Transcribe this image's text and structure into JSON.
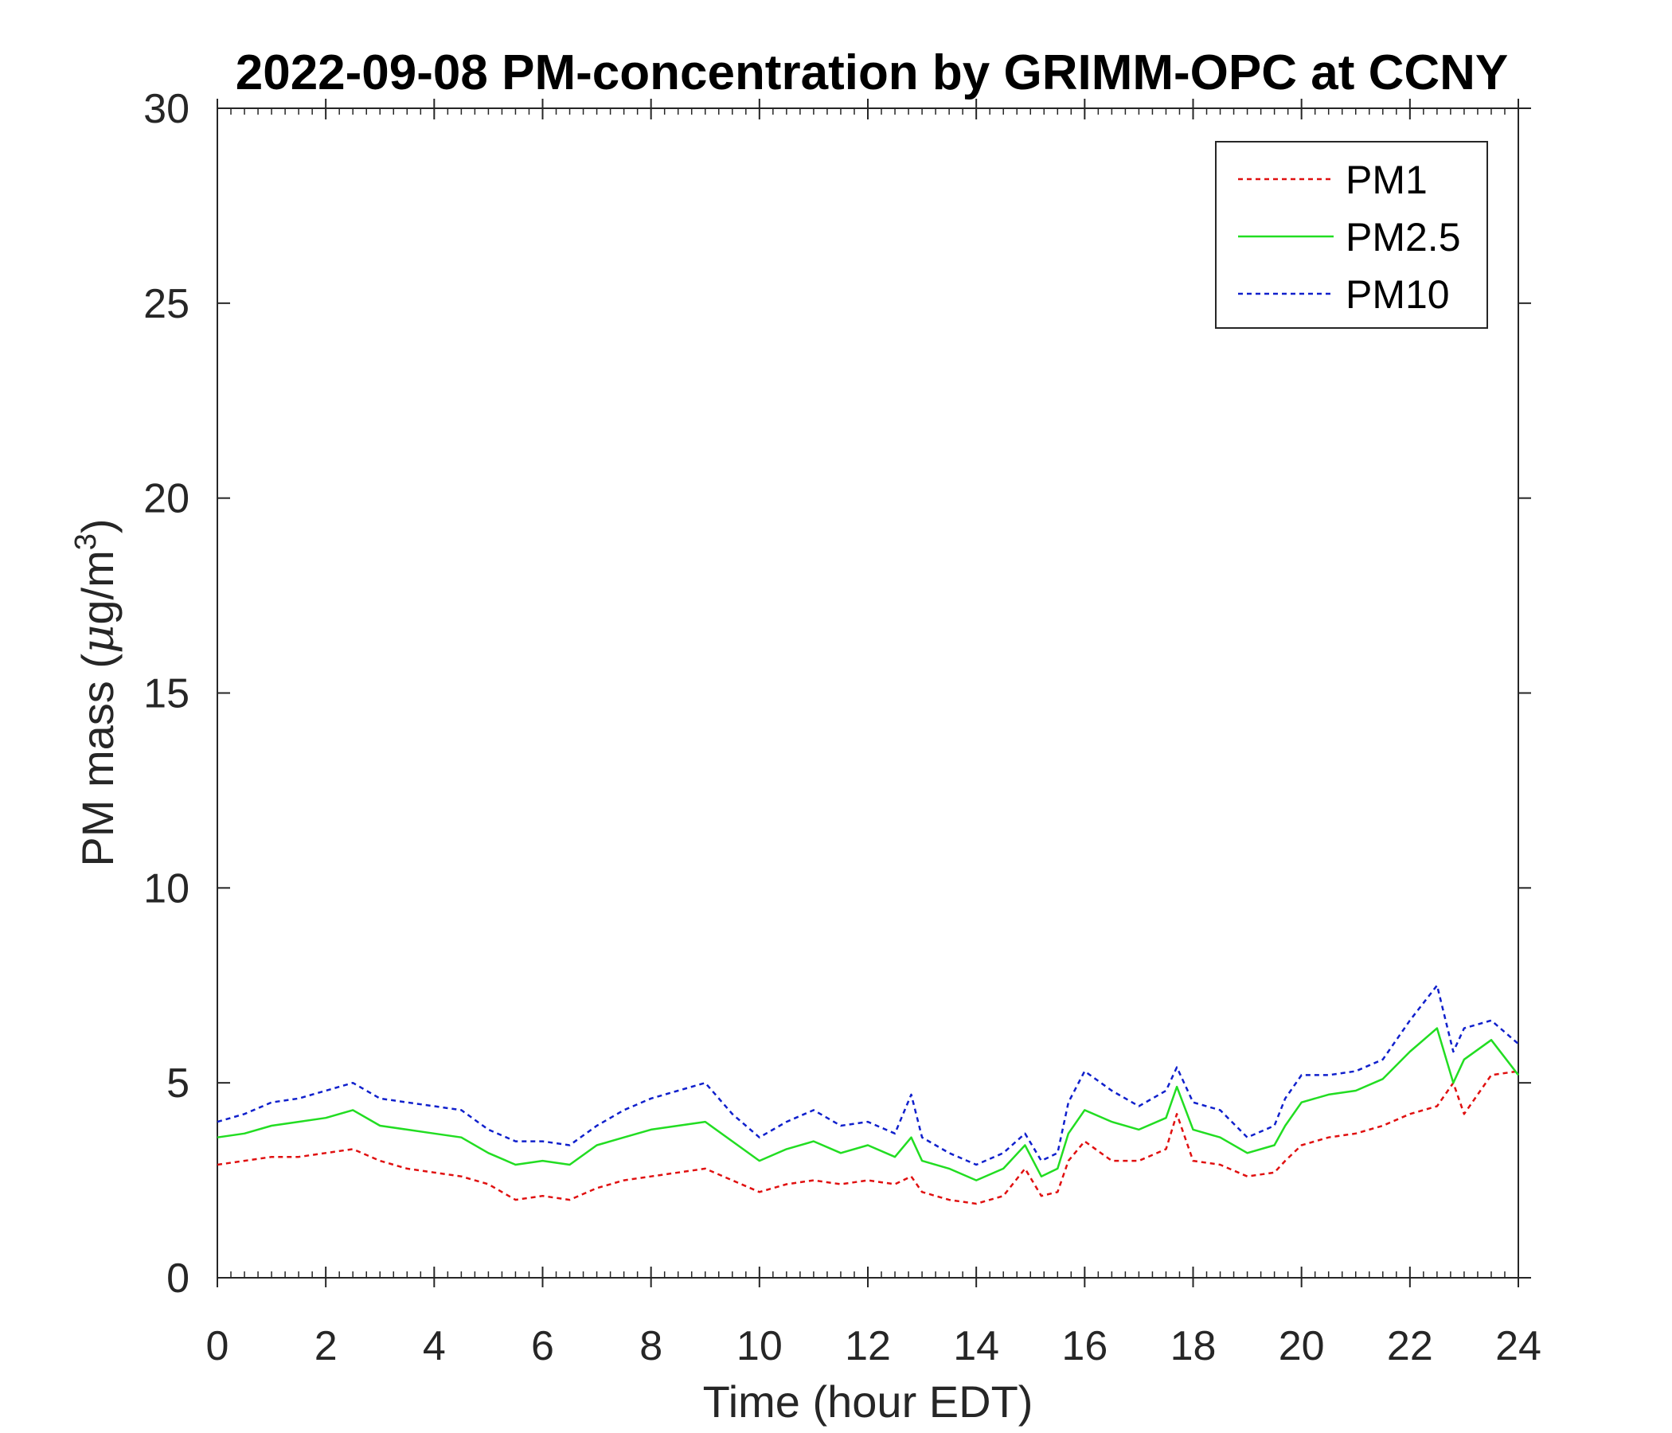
{
  "chart_data": {
    "type": "line",
    "title": "2022-09-08 PM-concentration by GRIMM-OPC at CCNY",
    "xlabel": "Time (hour EDT)",
    "ylabel_prefix": "PM mass (",
    "ylabel_unit_mu": "μ",
    "ylabel_unit_rest": "g/m",
    "ylabel_sup": "3",
    "ylabel_suffix": ")",
    "xlim": [
      0,
      24
    ],
    "ylim": [
      0,
      30
    ],
    "xticks": [
      0,
      2,
      4,
      6,
      8,
      10,
      12,
      14,
      16,
      18,
      20,
      22,
      24
    ],
    "xtick_labels": [
      "0",
      "2",
      "4",
      "6",
      "8",
      "10",
      "12",
      "14",
      "16",
      "18",
      "20",
      "22",
      "24"
    ],
    "yticks": [
      0,
      5,
      10,
      15,
      20,
      25,
      30
    ],
    "ytick_labels": [
      "0",
      "5",
      "10",
      "15",
      "20",
      "25",
      "30"
    ],
    "grid": false,
    "legend_position": "top-right",
    "x": [
      0,
      0.5,
      1,
      1.5,
      2,
      2.5,
      3,
      3.5,
      4,
      4.5,
      5,
      5.5,
      6,
      6.5,
      7,
      7.5,
      8,
      8.5,
      9,
      9.5,
      10,
      10.5,
      11,
      11.5,
      12,
      12.5,
      12.8,
      13,
      13.5,
      14,
      14.5,
      14.9,
      15.2,
      15.5,
      15.7,
      16,
      16.5,
      17,
      17.5,
      17.7,
      18,
      18.5,
      19,
      19.5,
      19.7,
      20,
      20.5,
      21,
      21.5,
      22,
      22.5,
      22.8,
      23,
      23.5,
      24
    ],
    "series": [
      {
        "name": "PM1",
        "color": "#e01010",
        "style": "dashed",
        "values": [
          2.9,
          3.0,
          3.1,
          3.1,
          3.2,
          3.3,
          3.0,
          2.8,
          2.7,
          2.6,
          2.4,
          2.0,
          2.1,
          2.0,
          2.3,
          2.5,
          2.6,
          2.7,
          2.8,
          2.5,
          2.2,
          2.4,
          2.5,
          2.4,
          2.5,
          2.4,
          2.6,
          2.2,
          2.0,
          1.9,
          2.1,
          2.8,
          2.1,
          2.2,
          3.0,
          3.5,
          3.0,
          3.0,
          3.3,
          4.2,
          3.0,
          2.9,
          2.6,
          2.7,
          3.0,
          3.4,
          3.6,
          3.7,
          3.9,
          4.2,
          4.4,
          5.0,
          4.2,
          5.2,
          5.3
        ]
      },
      {
        "name": "PM2.5",
        "color": "#22dd22",
        "style": "solid",
        "values": [
          3.6,
          3.7,
          3.9,
          4.0,
          4.1,
          4.3,
          3.9,
          3.8,
          3.7,
          3.6,
          3.2,
          2.9,
          3.0,
          2.9,
          3.4,
          3.6,
          3.8,
          3.9,
          4.0,
          3.5,
          3.0,
          3.3,
          3.5,
          3.2,
          3.4,
          3.1,
          3.6,
          3.0,
          2.8,
          2.5,
          2.8,
          3.4,
          2.6,
          2.8,
          3.7,
          4.3,
          4.0,
          3.8,
          4.1,
          4.9,
          3.8,
          3.6,
          3.2,
          3.4,
          3.9,
          4.5,
          4.7,
          4.8,
          5.1,
          5.8,
          6.4,
          5.0,
          5.6,
          6.1,
          5.2
        ]
      },
      {
        "name": "PM10",
        "color": "#1020cc",
        "style": "dashed",
        "values": [
          4.0,
          4.2,
          4.5,
          4.6,
          4.8,
          5.0,
          4.6,
          4.5,
          4.4,
          4.3,
          3.8,
          3.5,
          3.5,
          3.4,
          3.9,
          4.3,
          4.6,
          4.8,
          5.0,
          4.2,
          3.6,
          4.0,
          4.3,
          3.9,
          4.0,
          3.7,
          4.7,
          3.6,
          3.2,
          2.9,
          3.2,
          3.7,
          3.0,
          3.2,
          4.5,
          5.3,
          4.8,
          4.4,
          4.8,
          5.4,
          4.5,
          4.3,
          3.6,
          3.9,
          4.6,
          5.2,
          5.2,
          5.3,
          5.6,
          6.6,
          7.5,
          5.8,
          6.4,
          6.6,
          6.0
        ]
      }
    ]
  }
}
